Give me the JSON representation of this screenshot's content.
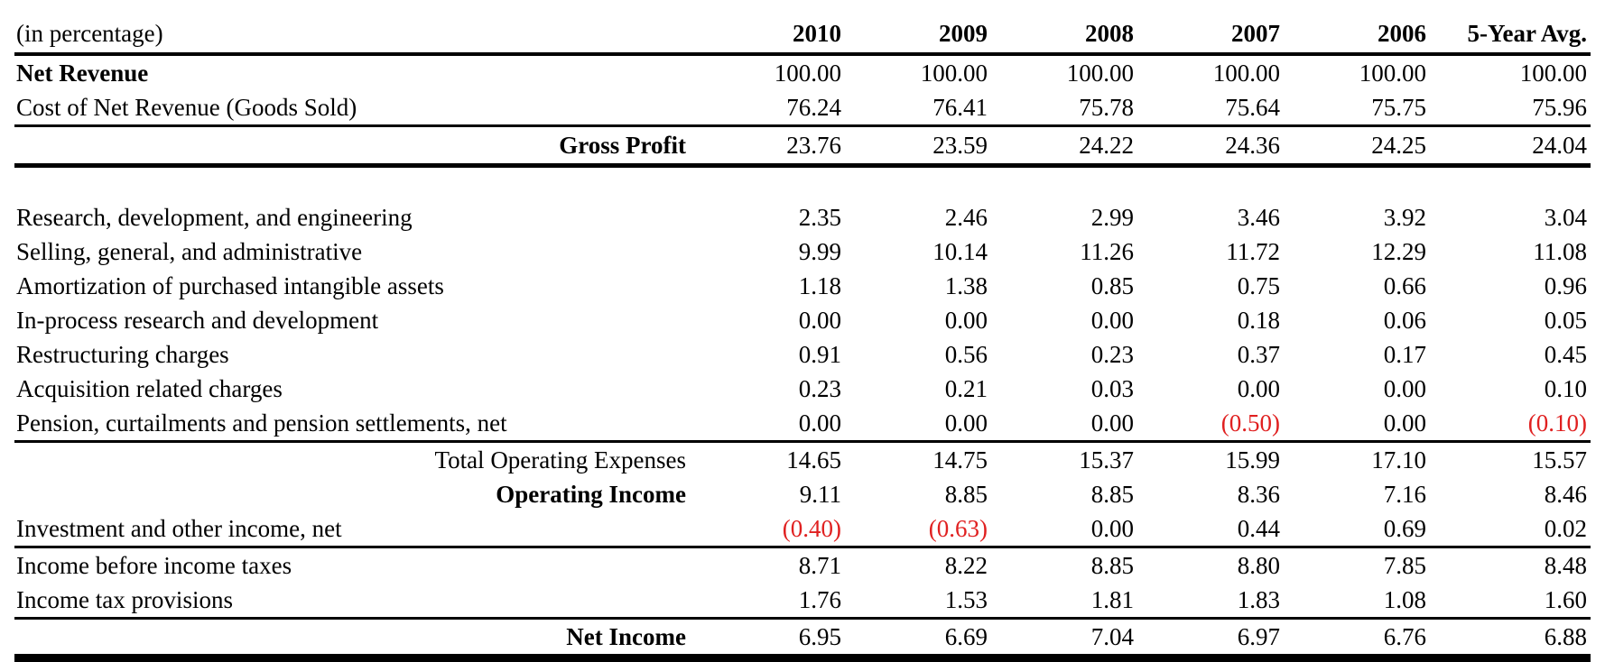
{
  "table": {
    "unit_label": "(in percentage)",
    "columns": [
      "2010",
      "2009",
      "2008",
      "2007",
      "2006",
      "5-Year Avg."
    ],
    "rows": [
      {
        "label": "Net Revenue",
        "values": [
          "100.00",
          "100.00",
          "100.00",
          "100.00",
          "100.00",
          "100.00"
        ]
      },
      {
        "label": "Cost of Net Revenue (Goods Sold)",
        "values": [
          "76.24",
          "76.41",
          "75.78",
          "75.64",
          "75.75",
          "75.96"
        ]
      },
      {
        "label": "Gross Profit",
        "values": [
          "23.76",
          "23.59",
          "24.22",
          "24.36",
          "24.25",
          "24.04"
        ]
      },
      {
        "label": "Research, development, and engineering",
        "values": [
          "2.35",
          "2.46",
          "2.99",
          "3.46",
          "3.92",
          "3.04"
        ]
      },
      {
        "label": "Selling, general, and administrative",
        "values": [
          "9.99",
          "10.14",
          "11.26",
          "11.72",
          "12.29",
          "11.08"
        ]
      },
      {
        "label": "Amortization of purchased intangible assets",
        "values": [
          "1.18",
          "1.38",
          "0.85",
          "0.75",
          "0.66",
          "0.96"
        ]
      },
      {
        "label": "In-process research and development",
        "values": [
          "0.00",
          "0.00",
          "0.00",
          "0.18",
          "0.06",
          "0.05"
        ]
      },
      {
        "label": "Restructuring charges",
        "values": [
          "0.91",
          "0.56",
          "0.23",
          "0.37",
          "0.17",
          "0.45"
        ]
      },
      {
        "label": "Acquisition related charges",
        "values": [
          "0.23",
          "0.21",
          "0.03",
          "0.00",
          "0.00",
          "0.10"
        ]
      },
      {
        "label": "Pension, curtailments and pension settlements, net",
        "values": [
          "0.00",
          "0.00",
          "0.00",
          "(0.50)",
          "0.00",
          "(0.10)"
        ]
      },
      {
        "label": "Total Operating Expenses",
        "values": [
          "14.65",
          "14.75",
          "15.37",
          "15.99",
          "17.10",
          "15.57"
        ]
      },
      {
        "label": "Operating Income",
        "values": [
          "9.11",
          "8.85",
          "8.85",
          "8.36",
          "7.16",
          "8.46"
        ]
      },
      {
        "label": "Investment and other income, net",
        "values": [
          "(0.40)",
          "(0.63)",
          "0.00",
          "0.44",
          "0.69",
          "0.02"
        ]
      },
      {
        "label": "Income before income taxes",
        "values": [
          "8.71",
          "8.22",
          "8.85",
          "8.80",
          "7.85",
          "8.48"
        ]
      },
      {
        "label": "Income tax provisions",
        "values": [
          "1.76",
          "1.53",
          "1.81",
          "1.83",
          "1.08",
          "1.60"
        ]
      },
      {
        "label": "Net Income",
        "values": [
          "6.95",
          "6.69",
          "7.04",
          "6.97",
          "6.76",
          "6.88"
        ]
      }
    ]
  },
  "colors": {
    "negative": "#e02020",
    "text": "#000000",
    "background": "#ffffff"
  }
}
